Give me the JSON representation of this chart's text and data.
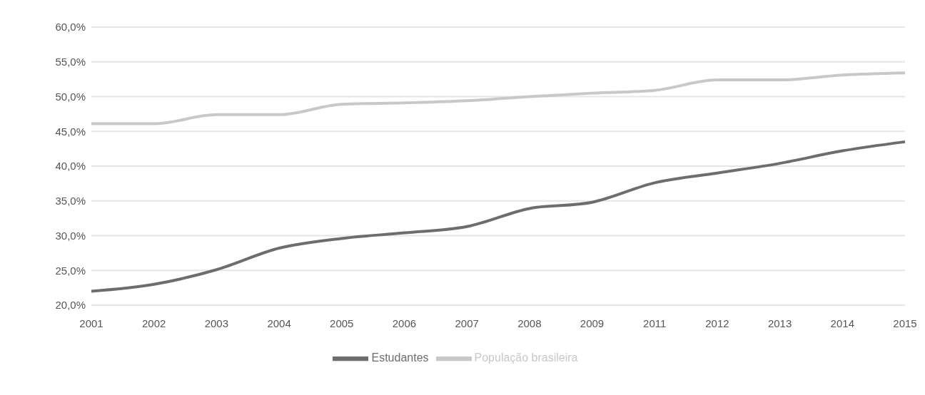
{
  "chart_data": {
    "type": "line",
    "categories": [
      "2001",
      "2002",
      "2003",
      "2004",
      "2005",
      "2006",
      "2007",
      "2008",
      "2009",
      "2011",
      "2012",
      "2013",
      "2014",
      "2015"
    ],
    "series": [
      {
        "name": "Estudantes",
        "color": "#6d6d6d",
        "values": [
          22.0,
          23.0,
          25.1,
          28.2,
          29.6,
          30.4,
          31.3,
          33.9,
          34.8,
          37.6,
          39.0,
          40.4,
          42.2,
          43.5
        ]
      },
      {
        "name": "População brasileira",
        "color": "#c8c8c8",
        "values": [
          46.1,
          46.1,
          47.4,
          47.4,
          48.9,
          49.1,
          49.4,
          50.0,
          50.5,
          50.9,
          52.4,
          52.4,
          53.1,
          53.4
        ]
      }
    ],
    "ylim": [
      20,
      60
    ],
    "yticks": [
      {
        "value": 20,
        "label": "20,0%"
      },
      {
        "value": 25,
        "label": "25,0%"
      },
      {
        "value": 30,
        "label": "30,0%"
      },
      {
        "value": 35,
        "label": "35,0%"
      },
      {
        "value": 40,
        "label": "40,0%"
      },
      {
        "value": 45,
        "label": "45,0%"
      },
      {
        "value": 50,
        "label": "50,0%"
      },
      {
        "value": 55,
        "label": "55,0%"
      },
      {
        "value": 60,
        "label": "60,0%"
      }
    ],
    "grid": "y",
    "legend": "bottom",
    "marker": "none",
    "line_style": "solid"
  }
}
